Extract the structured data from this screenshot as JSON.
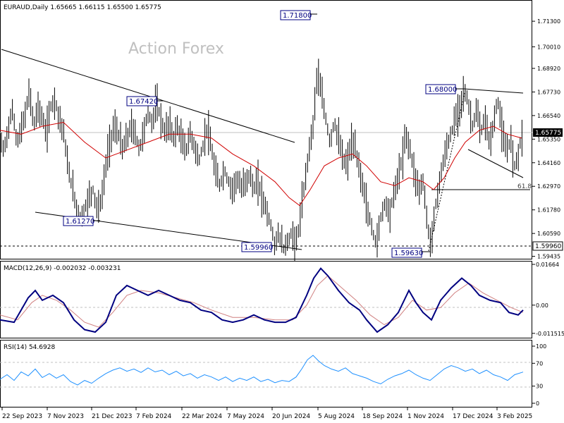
{
  "chart_data": {
    "type": "candlestick",
    "instrument": "EURAUD",
    "timeframe": "Daily",
    "header": "EURAUD,Daily  1.65665 1.66115 1.65500 1.65775",
    "ohlc": {
      "open": 1.65665,
      "high": 1.66115,
      "low": 1.655,
      "close": 1.65775
    },
    "watermark": "Action Forex",
    "x_tick_labels": [
      "22 Sep 2023",
      "7 Nov 2023",
      "21 Dec 2023",
      "7 Feb 2024",
      "22 Mar 2024",
      "7 May 2024",
      "20 Jun 2024",
      "5 Aug 2024",
      "18 Sep 2024",
      "1 Nov 2024",
      "17 Dec 2024",
      "3 Feb 2025"
    ],
    "price_panel": {
      "y_ticks": [
        "1.71300",
        "1.70010",
        "1.68920",
        "1.67730",
        "1.66540",
        "1.65350",
        "1.64160",
        "1.62970",
        "1.61780",
        "1.60590",
        "1.59435"
      ],
      "ylim": [
        1.5935,
        1.723
      ],
      "current_price_label": "1.65775",
      "reference_level_label": "1.59960",
      "fib_label": "61.8",
      "fib_level": 1.6295,
      "swing_labels": [
        {
          "text": "1.71800",
          "value": 1.718
        },
        {
          "text": "1.67420",
          "value": 1.6742
        },
        {
          "text": "1.68000",
          "value": 1.68
        },
        {
          "text": "1.61270",
          "value": 1.6127
        },
        {
          "text": "1.59960",
          "value": 1.5996
        },
        {
          "text": "1.59630",
          "value": 1.5963
        }
      ],
      "close_path": [
        [
          0,
          1.652
        ],
        [
          6,
          1.648
        ],
        [
          12,
          1.66
        ],
        [
          18,
          1.668
        ],
        [
          24,
          1.652
        ],
        [
          30,
          1.658
        ],
        [
          36,
          1.666
        ],
        [
          42,
          1.678
        ],
        [
          48,
          1.66
        ],
        [
          54,
          1.67
        ],
        [
          60,
          1.664
        ],
        [
          66,
          1.656
        ],
        [
          72,
          1.67
        ],
        [
          78,
          1.674
        ],
        [
          84,
          1.664
        ],
        [
          90,
          1.658
        ],
        [
          96,
          1.64
        ],
        [
          102,
          1.63
        ],
        [
          108,
          1.62
        ],
        [
          114,
          1.614
        ],
        [
          120,
          1.618
        ],
        [
          126,
          1.624
        ],
        [
          132,
          1.628
        ],
        [
          138,
          1.618
        ],
        [
          144,
          1.622
        ],
        [
          150,
          1.64
        ],
        [
          156,
          1.652
        ],
        [
          162,
          1.66
        ],
        [
          168,
          1.656
        ],
        [
          174,
          1.648
        ],
        [
          180,
          1.654
        ],
        [
          186,
          1.66
        ],
        [
          192,
          1.656
        ],
        [
          198,
          1.648
        ],
        [
          204,
          1.658
        ],
        [
          210,
          1.666
        ],
        [
          216,
          1.662
        ],
        [
          222,
          1.672
        ],
        [
          228,
          1.664
        ],
        [
          234,
          1.656
        ],
        [
          240,
          1.662
        ],
        [
          246,
          1.654
        ],
        [
          252,
          1.66
        ],
        [
          258,
          1.652
        ],
        [
          264,
          1.648
        ],
        [
          270,
          1.656
        ],
        [
          276,
          1.65
        ],
        [
          282,
          1.642
        ],
        [
          288,
          1.65
        ],
        [
          294,
          1.66
        ],
        [
          300,
          1.648
        ],
        [
          306,
          1.636
        ],
        [
          312,
          1.63
        ],
        [
          318,
          1.638
        ],
        [
          324,
          1.632
        ],
        [
          330,
          1.628
        ],
        [
          336,
          1.634
        ],
        [
          342,
          1.628
        ],
        [
          348,
          1.632
        ],
        [
          354,
          1.636
        ],
        [
          360,
          1.628
        ],
        [
          366,
          1.632
        ],
        [
          372,
          1.624
        ],
        [
          378,
          1.618
        ],
        [
          384,
          1.61
        ],
        [
          390,
          1.6
        ],
        [
          396,
          1.606
        ],
        [
          402,
          1.598
        ],
        [
          408,
          1.602
        ],
        [
          414,
          1.606
        ],
        [
          420,
          1.6
        ],
        [
          426,
          1.614
        ],
        [
          432,
          1.63
        ],
        [
          438,
          1.648
        ],
        [
          444,
          1.66
        ],
        [
          450,
          1.688
        ],
        [
          456,
          1.676
        ],
        [
          462,
          1.664
        ],
        [
          468,
          1.652
        ],
        [
          474,
          1.662
        ],
        [
          480,
          1.654
        ],
        [
          486,
          1.644
        ],
        [
          492,
          1.64
        ],
        [
          498,
          1.652
        ],
        [
          504,
          1.648
        ],
        [
          510,
          1.638
        ],
        [
          516,
          1.628
        ],
        [
          522,
          1.616
        ],
        [
          528,
          1.608
        ],
        [
          534,
          1.6
        ],
        [
          540,
          1.614
        ],
        [
          546,
          1.622
        ],
        [
          552,
          1.616
        ],
        [
          558,
          1.624
        ],
        [
          564,
          1.634
        ],
        [
          570,
          1.642
        ],
        [
          576,
          1.656
        ],
        [
          582,
          1.648
        ],
        [
          588,
          1.636
        ],
        [
          594,
          1.628
        ],
        [
          600,
          1.632
        ],
        [
          606,
          1.612
        ],
        [
          610,
          1.6
        ],
        [
          616,
          1.614
        ],
        [
          622,
          1.63
        ],
        [
          628,
          1.64
        ],
        [
          634,
          1.65
        ],
        [
          640,
          1.656
        ],
        [
          646,
          1.664
        ],
        [
          652,
          1.67
        ],
        [
          658,
          1.678
        ],
        [
          664,
          1.672
        ],
        [
          670,
          1.66
        ],
        [
          676,
          1.668
        ],
        [
          682,
          1.656
        ],
        [
          688,
          1.664
        ],
        [
          694,
          1.652
        ],
        [
          700,
          1.66
        ],
        [
          706,
          1.674
        ],
        [
          712,
          1.658
        ],
        [
          718,
          1.646
        ],
        [
          724,
          1.654
        ],
        [
          730,
          1.64
        ],
        [
          736,
          1.648
        ],
        [
          742,
          1.658
        ]
      ],
      "ma_path": [
        [
          0,
          1.658
        ],
        [
          30,
          1.656
        ],
        [
          60,
          1.66
        ],
        [
          90,
          1.662
        ],
        [
          120,
          1.652
        ],
        [
          150,
          1.644
        ],
        [
          180,
          1.648
        ],
        [
          210,
          1.652
        ],
        [
          240,
          1.656
        ],
        [
          270,
          1.656
        ],
        [
          300,
          1.654
        ],
        [
          330,
          1.646
        ],
        [
          360,
          1.64
        ],
        [
          390,
          1.632
        ],
        [
          410,
          1.624
        ],
        [
          425,
          1.62
        ],
        [
          440,
          1.628
        ],
        [
          460,
          1.64
        ],
        [
          480,
          1.644
        ],
        [
          500,
          1.646
        ],
        [
          520,
          1.64
        ],
        [
          540,
          1.632
        ],
        [
          560,
          1.63
        ],
        [
          580,
          1.634
        ],
        [
          600,
          1.632
        ],
        [
          615,
          1.628
        ],
        [
          630,
          1.634
        ],
        [
          645,
          1.644
        ],
        [
          660,
          1.652
        ],
        [
          680,
          1.658
        ],
        [
          700,
          1.66
        ],
        [
          720,
          1.656
        ],
        [
          740,
          1.654
        ]
      ]
    },
    "macd_panel": {
      "label": "MACD(12,26,9) -0.002032 -0.003231",
      "y_ticks": [
        "0.01664",
        "0.00",
        "-0.011515"
      ],
      "ylim": [
        -0.013,
        0.0175
      ],
      "macd_path": [
        [
          0,
          -0.006
        ],
        [
          20,
          -0.007
        ],
        [
          40,
          0.003
        ],
        [
          50,
          0.006
        ],
        [
          60,
          0.002
        ],
        [
          75,
          0.004
        ],
        [
          90,
          0.001
        ],
        [
          105,
          -0.006
        ],
        [
          120,
          -0.01
        ],
        [
          135,
          -0.011
        ],
        [
          150,
          -0.007
        ],
        [
          165,
          0.004
        ],
        [
          180,
          0.008
        ],
        [
          195,
          0.006
        ],
        [
          210,
          0.004
        ],
        [
          225,
          0.006
        ],
        [
          240,
          0.004
        ],
        [
          255,
          0.002
        ],
        [
          270,
          0.001
        ],
        [
          285,
          -0.002
        ],
        [
          300,
          -0.003
        ],
        [
          315,
          -0.006
        ],
        [
          330,
          -0.007
        ],
        [
          345,
          -0.006
        ],
        [
          360,
          -0.004
        ],
        [
          375,
          -0.006
        ],
        [
          390,
          -0.007
        ],
        [
          405,
          -0.007
        ],
        [
          420,
          -0.005
        ],
        [
          435,
          0.004
        ],
        [
          445,
          0.011
        ],
        [
          455,
          0.015
        ],
        [
          465,
          0.012
        ],
        [
          480,
          0.006
        ],
        [
          495,
          0.001
        ],
        [
          510,
          -0.002
        ],
        [
          520,
          -0.006
        ],
        [
          535,
          -0.011
        ],
        [
          550,
          -0.008
        ],
        [
          565,
          -0.003
        ],
        [
          580,
          0.006
        ],
        [
          590,
          0.001
        ],
        [
          600,
          -0.003
        ],
        [
          612,
          -0.006
        ],
        [
          625,
          0.002
        ],
        [
          640,
          0.007
        ],
        [
          655,
          0.011
        ],
        [
          668,
          0.008
        ],
        [
          680,
          0.004
        ],
        [
          695,
          0.002
        ],
        [
          710,
          0.001
        ],
        [
          722,
          -0.003
        ],
        [
          735,
          -0.004
        ],
        [
          742,
          -0.002
        ]
      ],
      "signal_path": [
        [
          0,
          -0.004
        ],
        [
          25,
          -0.006
        ],
        [
          45,
          0.001
        ],
        [
          60,
          0.004
        ],
        [
          80,
          0.002
        ],
        [
          100,
          -0.002
        ],
        [
          120,
          -0.007
        ],
        [
          140,
          -0.009
        ],
        [
          160,
          -0.003
        ],
        [
          180,
          0.004
        ],
        [
          200,
          0.006
        ],
        [
          225,
          0.005
        ],
        [
          250,
          0.003
        ],
        [
          275,
          0.001
        ],
        [
          300,
          -0.002
        ],
        [
          330,
          -0.005
        ],
        [
          360,
          -0.005
        ],
        [
          390,
          -0.006
        ],
        [
          415,
          -0.006
        ],
        [
          435,
          0.0
        ],
        [
          450,
          0.008
        ],
        [
          465,
          0.012
        ],
        [
          485,
          0.007
        ],
        [
          505,
          0.002
        ],
        [
          525,
          -0.004
        ],
        [
          545,
          -0.008
        ],
        [
          565,
          -0.005
        ],
        [
          585,
          0.002
        ],
        [
          605,
          -0.002
        ],
        [
          625,
          -0.001
        ],
        [
          645,
          0.005
        ],
        [
          665,
          0.009
        ],
        [
          685,
          0.005
        ],
        [
          705,
          0.002
        ],
        [
          725,
          -0.001
        ],
        [
          742,
          -0.003
        ]
      ]
    },
    "rsi_panel": {
      "label": "RSI(14) 54.6928",
      "y_ticks": [
        "100",
        "70",
        "30",
        "0"
      ],
      "ylim": [
        0,
        100
      ],
      "rsi_path": [
        [
          0,
          42
        ],
        [
          10,
          50
        ],
        [
          20,
          40
        ],
        [
          30,
          55
        ],
        [
          40,
          48
        ],
        [
          50,
          60
        ],
        [
          60,
          45
        ],
        [
          70,
          52
        ],
        [
          80,
          44
        ],
        [
          90,
          50
        ],
        [
          100,
          38
        ],
        [
          110,
          32
        ],
        [
          120,
          40
        ],
        [
          130,
          35
        ],
        [
          140,
          44
        ],
        [
          150,
          52
        ],
        [
          160,
          58
        ],
        [
          170,
          62
        ],
        [
          180,
          56
        ],
        [
          190,
          60
        ],
        [
          200,
          54
        ],
        [
          210,
          62
        ],
        [
          220,
          55
        ],
        [
          230,
          58
        ],
        [
          240,
          50
        ],
        [
          250,
          56
        ],
        [
          260,
          48
        ],
        [
          270,
          52
        ],
        [
          280,
          44
        ],
        [
          290,
          50
        ],
        [
          300,
          46
        ],
        [
          310,
          40
        ],
        [
          320,
          46
        ],
        [
          330,
          38
        ],
        [
          340,
          44
        ],
        [
          350,
          40
        ],
        [
          360,
          46
        ],
        [
          370,
          38
        ],
        [
          380,
          42
        ],
        [
          390,
          36
        ],
        [
          400,
          40
        ],
        [
          410,
          38
        ],
        [
          420,
          46
        ],
        [
          428,
          60
        ],
        [
          436,
          76
        ],
        [
          444,
          84
        ],
        [
          452,
          74
        ],
        [
          460,
          66
        ],
        [
          470,
          60
        ],
        [
          480,
          56
        ],
        [
          490,
          62
        ],
        [
          500,
          52
        ],
        [
          510,
          48
        ],
        [
          520,
          44
        ],
        [
          530,
          38
        ],
        [
          540,
          34
        ],
        [
          550,
          42
        ],
        [
          560,
          48
        ],
        [
          570,
          52
        ],
        [
          580,
          58
        ],
        [
          590,
          50
        ],
        [
          600,
          44
        ],
        [
          610,
          40
        ],
        [
          620,
          50
        ],
        [
          630,
          60
        ],
        [
          640,
          66
        ],
        [
          650,
          62
        ],
        [
          660,
          56
        ],
        [
          670,
          60
        ],
        [
          680,
          52
        ],
        [
          690,
          58
        ],
        [
          700,
          50
        ],
        [
          710,
          46
        ],
        [
          720,
          40
        ],
        [
          730,
          50
        ],
        [
          742,
          54.7
        ]
      ],
      "dashed_levels": [
        70,
        30
      ]
    }
  }
}
